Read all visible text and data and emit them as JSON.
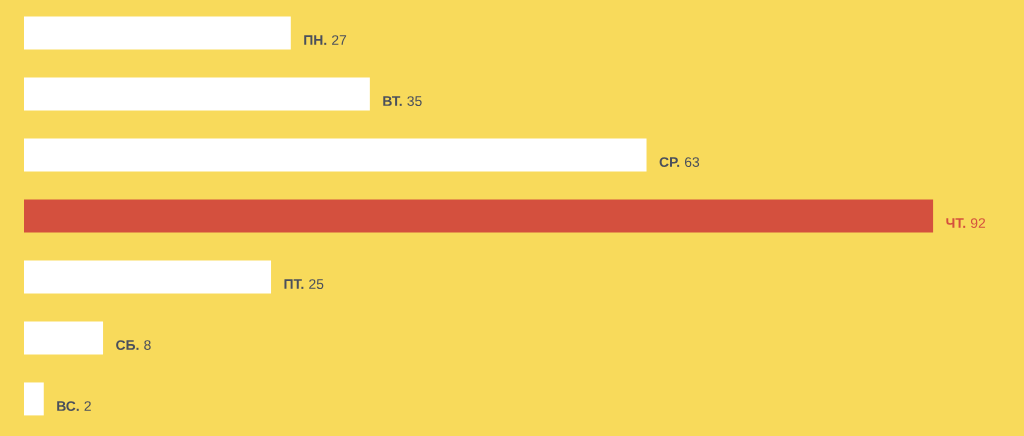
{
  "chart_data": {
    "type": "bar",
    "orientation": "horizontal",
    "categories": [
      "ПН.",
      "ВТ.",
      "СР.",
      "ЧТ.",
      "ПТ.",
      "СБ.",
      "ВС."
    ],
    "values": [
      27,
      35,
      63,
      92,
      25,
      8,
      2
    ],
    "colors": [
      "#ffffff",
      "#ffffff",
      "#ffffff",
      "#d4503e",
      "#ffffff",
      "#ffffff",
      "#ffffff"
    ],
    "data_labels": true
  }
}
